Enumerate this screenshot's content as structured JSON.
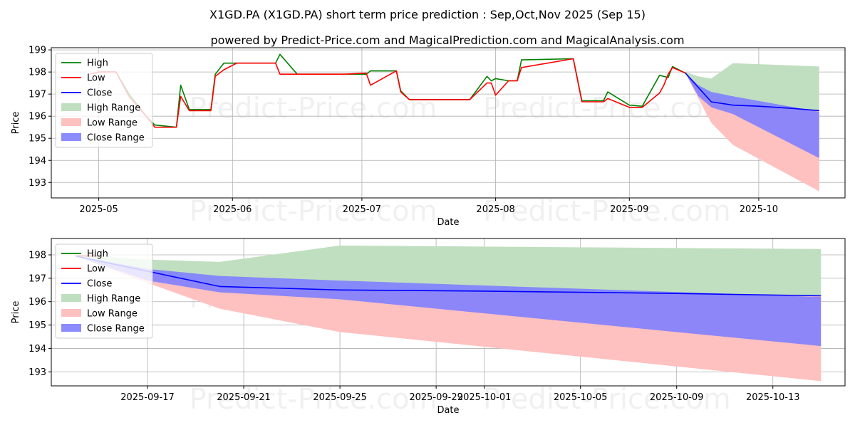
{
  "title": "X1GD.PA (X1GD.PA) short term price prediction : Sep,Oct,Nov 2025 (Sep 15)",
  "subtitle": "powered by Predict-Price.com and MagicalPrediction.com and MagicalAnalysis.com",
  "watermark": "Predict-Price.com",
  "colors": {
    "high": "#008000",
    "low": "#ff0000",
    "close": "#0000ff",
    "high_range": "#c0dfc0",
    "low_range": "#ffc0c0",
    "close_range": "#7f7fff",
    "grid": "#b0b0b0"
  },
  "chart_data": [
    {
      "type": "line",
      "xlabel": "Date",
      "ylabel": "Price",
      "xlim": [
        "2025-04-20",
        "2025-10-21"
      ],
      "ylim": [
        192.3,
        199.1
      ],
      "x_ticks": [
        "2025-05",
        "2025-06",
        "2025-07",
        "2025-08",
        "2025-09",
        "2025-10"
      ],
      "x_tick_dates": [
        "2025-05-01",
        "2025-06-01",
        "2025-07-01",
        "2025-08-01",
        "2025-09-01",
        "2025-10-01"
      ],
      "y_ticks": [
        193,
        194,
        195,
        196,
        197,
        198,
        199
      ],
      "grid": true,
      "legend_position": "top-left",
      "legend": [
        "High",
        "Low",
        "Close",
        "High Range",
        "Low Range",
        "Close Range"
      ],
      "series": [
        {
          "name": "High",
          "x": [
            "2025-04-29",
            "2025-05-01",
            "2025-05-05",
            "2025-05-08",
            "2025-05-12",
            "2025-05-14",
            "2025-05-19",
            "2025-05-20",
            "2025-05-22",
            "2025-05-27",
            "2025-05-28",
            "2025-05-30",
            "2025-06-02",
            "2025-06-11",
            "2025-06-12",
            "2025-06-16",
            "2025-06-27",
            "2025-07-02",
            "2025-07-03",
            "2025-07-09",
            "2025-07-10",
            "2025-07-12",
            "2025-07-26",
            "2025-07-30",
            "2025-07-31",
            "2025-08-01",
            "2025-08-04",
            "2025-08-05",
            "2025-08-06",
            "2025-08-07",
            "2025-08-19",
            "2025-08-21",
            "2025-08-25",
            "2025-08-26",
            "2025-08-27",
            "2025-09-01",
            "2025-09-04",
            "2025-09-08",
            "2025-09-09",
            "2025-09-10",
            "2025-09-11",
            "2025-09-14"
          ],
          "values": [
            197.9,
            198.0,
            198.0,
            197.0,
            196.0,
            195.6,
            195.5,
            197.4,
            196.3,
            196.3,
            197.9,
            198.4,
            198.4,
            198.4,
            198.8,
            197.9,
            197.9,
            197.9,
            198.05,
            198.05,
            197.15,
            196.75,
            196.75,
            197.8,
            197.6,
            197.7,
            197.6,
            197.6,
            197.6,
            198.55,
            198.6,
            196.7,
            196.7,
            196.7,
            197.1,
            196.5,
            196.45,
            197.85,
            197.8,
            197.75,
            198.25,
            197.95
          ]
        },
        {
          "name": "Low",
          "x": [
            "2025-04-29",
            "2025-05-01",
            "2025-05-05",
            "2025-05-08",
            "2025-05-12",
            "2025-05-14",
            "2025-05-19",
            "2025-05-20",
            "2025-05-22",
            "2025-05-27",
            "2025-05-28",
            "2025-05-30",
            "2025-06-02",
            "2025-06-11",
            "2025-06-12",
            "2025-06-16",
            "2025-06-27",
            "2025-07-02",
            "2025-07-03",
            "2025-07-09",
            "2025-07-10",
            "2025-07-12",
            "2025-07-26",
            "2025-07-30",
            "2025-07-31",
            "2025-08-01",
            "2025-08-04",
            "2025-08-05",
            "2025-08-06",
            "2025-08-07",
            "2025-08-19",
            "2025-08-21",
            "2025-08-25",
            "2025-08-26",
            "2025-08-27",
            "2025-09-01",
            "2025-09-04",
            "2025-09-08",
            "2025-09-09",
            "2025-09-10",
            "2025-09-11",
            "2025-09-14"
          ],
          "values": [
            197.9,
            198.0,
            198.0,
            196.9,
            196.0,
            195.5,
            195.5,
            196.9,
            196.25,
            196.25,
            197.8,
            198.1,
            198.4,
            198.4,
            197.9,
            197.9,
            197.9,
            197.95,
            197.4,
            198.05,
            197.1,
            196.75,
            196.75,
            197.5,
            197.5,
            196.95,
            197.6,
            197.6,
            197.6,
            198.2,
            198.6,
            196.65,
            196.65,
            196.65,
            196.8,
            196.4,
            196.4,
            197.05,
            197.4,
            197.9,
            198.2,
            197.95
          ]
        },
        {
          "name": "Close",
          "x": [
            "2025-09-14",
            "2025-09-17",
            "2025-09-20",
            "2025-09-25",
            "2025-10-01",
            "2025-10-09",
            "2025-10-15"
          ],
          "values": [
            197.95,
            197.3,
            196.65,
            196.5,
            196.45,
            196.35,
            196.25
          ]
        }
      ],
      "ranges": [
        {
          "name": "High Range",
          "x": [
            "2025-09-14",
            "2025-09-17",
            "2025-09-20",
            "2025-09-25",
            "2025-10-15"
          ],
          "upper": [
            198.0,
            197.8,
            197.7,
            198.4,
            198.25
          ],
          "lower": [
            197.95,
            197.3,
            196.65,
            196.5,
            196.25
          ]
        },
        {
          "name": "Low Range",
          "x": [
            "2025-09-14",
            "2025-09-17",
            "2025-09-20",
            "2025-09-25",
            "2025-10-15"
          ],
          "upper": [
            197.95,
            197.3,
            196.65,
            196.5,
            196.25
          ],
          "lower": [
            197.95,
            196.8,
            195.7,
            194.7,
            192.6
          ]
        },
        {
          "name": "Close Range",
          "x": [
            "2025-09-14",
            "2025-09-17",
            "2025-09-20",
            "2025-09-25",
            "2025-10-15"
          ],
          "upper": [
            197.95,
            197.4,
            197.1,
            196.9,
            196.2
          ],
          "lower": [
            197.95,
            196.9,
            196.4,
            196.1,
            194.1
          ]
        }
      ]
    },
    {
      "type": "line",
      "xlabel": "Date",
      "ylabel": "Price",
      "xlim": [
        "2025-09-13",
        "2025-10-16"
      ],
      "ylim": [
        192.4,
        198.7
      ],
      "x_ticks": [
        "2025-09-17",
        "2025-09-21",
        "2025-09-25",
        "2025-09-29",
        "2025-10-01",
        "2025-10-05",
        "2025-10-09",
        "2025-10-13"
      ],
      "y_ticks": [
        193,
        194,
        195,
        196,
        197,
        198
      ],
      "grid": true,
      "legend_position": "top-left",
      "legend": [
        "High",
        "Low",
        "Close",
        "High Range",
        "Low Range",
        "Close Range"
      ],
      "series": [
        {
          "name": "High",
          "x": [
            "2025-09-14",
            "2025-09-15"
          ],
          "values": [
            197.95,
            197.95
          ]
        },
        {
          "name": "Low",
          "x": [
            "2025-09-14",
            "2025-09-15"
          ],
          "values": [
            197.95,
            197.95
          ]
        },
        {
          "name": "Close",
          "x": [
            "2025-09-14",
            "2025-09-17",
            "2025-09-20",
            "2025-09-25",
            "2025-10-01",
            "2025-10-09",
            "2025-10-15"
          ],
          "values": [
            197.95,
            197.3,
            196.65,
            196.5,
            196.45,
            196.35,
            196.25
          ]
        }
      ],
      "ranges": [
        {
          "name": "High Range",
          "x": [
            "2025-09-14",
            "2025-09-17",
            "2025-09-20",
            "2025-09-25",
            "2025-10-15"
          ],
          "upper": [
            198.0,
            197.8,
            197.7,
            198.4,
            198.25
          ],
          "lower": [
            197.95,
            197.3,
            196.65,
            196.5,
            196.25
          ]
        },
        {
          "name": "Low Range",
          "x": [
            "2025-09-14",
            "2025-09-17",
            "2025-09-20",
            "2025-09-25",
            "2025-10-15"
          ],
          "upper": [
            197.95,
            197.3,
            196.65,
            196.5,
            196.25
          ],
          "lower": [
            197.95,
            196.8,
            195.7,
            194.7,
            192.6
          ]
        },
        {
          "name": "Close Range",
          "x": [
            "2025-09-14",
            "2025-09-17",
            "2025-09-20",
            "2025-09-25",
            "2025-10-15"
          ],
          "upper": [
            197.95,
            197.4,
            197.1,
            196.9,
            196.2
          ],
          "lower": [
            197.95,
            196.9,
            196.4,
            196.1,
            194.1
          ]
        }
      ]
    }
  ]
}
